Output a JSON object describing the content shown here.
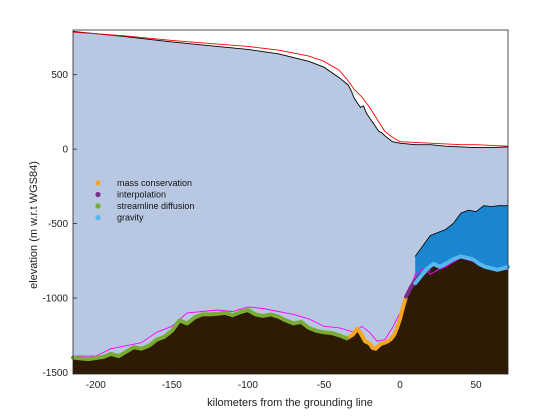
{
  "chart_data": {
    "type": "area",
    "xlabel": "kilometers from the grounding line",
    "ylabel": "elevation (m w.r.t WGS84)",
    "xlim": [
      -215,
      71
    ],
    "ylim": [
      -1510,
      800
    ],
    "xticks": [
      -200,
      -150,
      -100,
      -50,
      0,
      50
    ],
    "yticks": [
      500,
      0,
      -500,
      -1000,
      -1500
    ],
    "grid": false,
    "legend_position": "left-middle",
    "colors": {
      "ice": "#b8c8e3",
      "bed": "#2d1b05",
      "cavity": "#1a86cf",
      "surface_obs": "#000000",
      "surface_model": "#ff0000",
      "bed_alt": "#ff00ff",
      "mass_conservation": "#f5a623",
      "interpolation": "#7b2d8e",
      "streamline_diffusion": "#7aab34",
      "gravity": "#56b8f0"
    },
    "series": [
      {
        "name": "mass conservation",
        "color_key": "mass_conservation",
        "x": [
          -35,
          -31,
          -28,
          -26,
          -23,
          -20,
          -18,
          -16,
          -14,
          -12,
          -10,
          -8,
          -6,
          -4,
          -2,
          0,
          2,
          4
        ],
        "y": [
          -1270,
          -1245,
          -1205,
          -1235,
          -1290,
          -1305,
          -1335,
          -1340,
          -1320,
          -1305,
          -1300,
          -1290,
          -1275,
          -1250,
          -1200,
          -1140,
          -1060,
          -990
        ]
      },
      {
        "name": "interpolation",
        "color_key": "interpolation",
        "x": [
          4,
          7,
          10,
          13,
          16,
          19
        ],
        "y": [
          -990,
          -930,
          -880,
          -850,
          -825,
          -810
        ]
      },
      {
        "name": "streamline diffusion",
        "color_key": "streamline_diffusion",
        "x": [
          -215,
          -205,
          -195,
          -190,
          -185,
          -180,
          -175,
          -170,
          -165,
          -160,
          -155,
          -150,
          -145,
          -140,
          -135,
          -130,
          -125,
          -120,
          -115,
          -110,
          -105,
          -100,
          -95,
          -90,
          -85,
          -80,
          -75,
          -70,
          -65,
          -60,
          -55,
          -50,
          -45,
          -40,
          -35
        ],
        "y": [
          -1400,
          -1410,
          -1395,
          -1375,
          -1390,
          -1360,
          -1330,
          -1340,
          -1320,
          -1280,
          -1260,
          -1220,
          -1150,
          -1170,
          -1130,
          -1110,
          -1110,
          -1105,
          -1100,
          -1115,
          -1095,
          -1080,
          -1110,
          -1120,
          -1110,
          -1125,
          -1150,
          -1170,
          -1160,
          -1200,
          -1220,
          -1230,
          -1235,
          -1250,
          -1270
        ]
      },
      {
        "name": "gravity",
        "color_key": "gravity",
        "x": [
          10,
          14,
          18,
          22,
          26,
          30,
          35,
          40,
          44,
          48,
          52,
          56,
          60,
          64,
          68,
          71
        ],
        "y": [
          -900,
          -850,
          -800,
          -770,
          -790,
          -770,
          -740,
          -720,
          -730,
          -740,
          -770,
          -790,
          -800,
          -810,
          -800,
          -790
        ]
      }
    ],
    "surface_obs": {
      "x": [
        -215,
        -200,
        -180,
        -150,
        -120,
        -100,
        -80,
        -60,
        -50,
        -40,
        -34,
        -32,
        -30,
        -28,
        -26,
        -24,
        -22,
        -20,
        -18,
        -16,
        -14,
        -12,
        -10,
        -5,
        0,
        5,
        10,
        20,
        30,
        40,
        50,
        60,
        71
      ],
      "y": [
        790,
        775,
        755,
        720,
        690,
        670,
        640,
        590,
        550,
        480,
        430,
        390,
        340,
        310,
        280,
        290,
        240,
        210,
        180,
        150,
        120,
        110,
        90,
        50,
        40,
        35,
        30,
        30,
        20,
        15,
        10,
        10,
        15
      ]
    },
    "surface_model": {
      "x": [
        -215,
        -200,
        -180,
        -150,
        -120,
        -100,
        -80,
        -60,
        -50,
        -40,
        -35,
        -30,
        -25,
        -20,
        -15,
        -10,
        -5,
        0,
        10,
        20,
        30,
        40,
        50,
        60,
        71
      ],
      "y": [
        785,
        775,
        760,
        730,
        705,
        690,
        665,
        625,
        590,
        530,
        470,
        400,
        350,
        280,
        200,
        120,
        80,
        50,
        45,
        40,
        35,
        30,
        30,
        25,
        20
      ]
    },
    "bed_alt": {
      "x": [
        -215,
        -200,
        -190,
        -180,
        -170,
        -160,
        -150,
        -140,
        -130,
        -120,
        -110,
        -100,
        -90,
        -80,
        -70,
        -60,
        -50,
        -40,
        -30,
        -25,
        -20,
        -15,
        -10,
        -5,
        0,
        5,
        10,
        15,
        20,
        25,
        30,
        40,
        50,
        60,
        71
      ],
      "y": [
        -1390,
        -1390,
        -1340,
        -1320,
        -1300,
        -1230,
        -1190,
        -1100,
        -1090,
        -1080,
        -1090,
        -1060,
        -1070,
        -1090,
        -1110,
        -1140,
        -1190,
        -1200,
        -1230,
        -1190,
        -1230,
        -1290,
        -1280,
        -1200,
        -1100,
        -990,
        -840,
        -800,
        -840,
        -810,
        -790,
        -730,
        -760,
        -800,
        -810
      ]
    },
    "cavity_top": {
      "x": [
        10,
        15,
        20,
        25,
        30,
        35,
        40,
        45,
        50,
        55,
        60,
        65,
        71
      ],
      "y": [
        -720,
        -650,
        -580,
        -560,
        -540,
        -500,
        -430,
        -410,
        -420,
        -380,
        -385,
        -380,
        -380
      ]
    },
    "legend": [
      "mass conservation",
      "interpolation",
      "streamline diffusion",
      "gravity"
    ]
  }
}
